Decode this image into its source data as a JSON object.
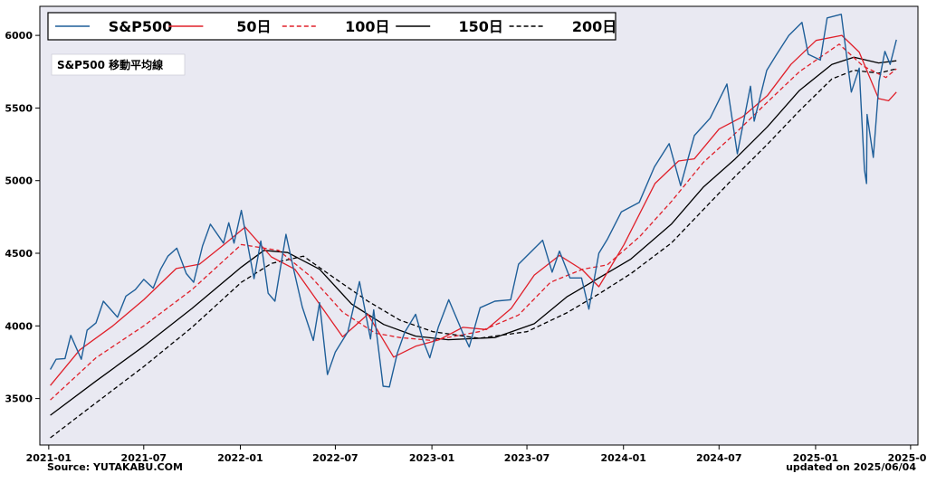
{
  "chart_data": {
    "type": "line",
    "annotation": "S&P500 移動平均線",
    "source_label": "Source: YUTAKABU.COM",
    "updated_label": "updated on 2025/06/04",
    "xlabel": "",
    "ylabel": "",
    "x_range": [
      "2020-12-15",
      "2025-07-15"
    ],
    "ylim": [
      3180,
      6200
    ],
    "grid": false,
    "legend_position": "top",
    "x_ticks": [
      {
        "date": "2021-01-01",
        "label": "2021-01"
      },
      {
        "date": "2021-07-01",
        "label": "2021-07"
      },
      {
        "date": "2022-01-01",
        "label": "2022-01"
      },
      {
        "date": "2022-07-01",
        "label": "2022-07"
      },
      {
        "date": "2023-01-01",
        "label": "2023-01"
      },
      {
        "date": "2023-07-01",
        "label": "2023-07"
      },
      {
        "date": "2024-01-01",
        "label": "2024-01"
      },
      {
        "date": "2024-07-01",
        "label": "2024-07"
      },
      {
        "date": "2025-01-01",
        "label": "2025-01"
      },
      {
        "date": "2025-07-01",
        "label": "2025-07"
      }
    ],
    "y_ticks": [
      3500,
      4000,
      4500,
      5000,
      5500,
      6000
    ],
    "series": [
      {
        "name": "S&P500",
        "color": "#1f5f99",
        "dash": "solid",
        "points": [
          [
            "2021-01-04",
            3700
          ],
          [
            "2021-01-15",
            3770
          ],
          [
            "2021-02-01",
            3775
          ],
          [
            "2021-02-12",
            3935
          ],
          [
            "2021-03-04",
            3770
          ],
          [
            "2021-03-15",
            3970
          ],
          [
            "2021-04-01",
            4020
          ],
          [
            "2021-04-15",
            4170
          ],
          [
            "2021-05-12",
            4060
          ],
          [
            "2021-05-28",
            4205
          ],
          [
            "2021-06-15",
            4250
          ],
          [
            "2021-07-01",
            4320
          ],
          [
            "2021-07-19",
            4260
          ],
          [
            "2021-08-02",
            4390
          ],
          [
            "2021-08-16",
            4480
          ],
          [
            "2021-09-02",
            4535
          ],
          [
            "2021-09-20",
            4360
          ],
          [
            "2021-10-04",
            4300
          ],
          [
            "2021-10-21",
            4550
          ],
          [
            "2021-11-05",
            4700
          ],
          [
            "2021-11-30",
            4570
          ],
          [
            "2021-12-10",
            4710
          ],
          [
            "2021-12-20",
            4570
          ],
          [
            "2022-01-03",
            4795
          ],
          [
            "2022-01-27",
            4325
          ],
          [
            "2022-02-09",
            4585
          ],
          [
            "2022-02-23",
            4225
          ],
          [
            "2022-03-08",
            4170
          ],
          [
            "2022-03-29",
            4630
          ],
          [
            "2022-04-12",
            4400
          ],
          [
            "2022-04-29",
            4130
          ],
          [
            "2022-05-20",
            3900
          ],
          [
            "2022-06-01",
            4160
          ],
          [
            "2022-06-16",
            3665
          ],
          [
            "2022-07-01",
            3820
          ],
          [
            "2022-07-25",
            3960
          ],
          [
            "2022-08-16",
            4305
          ],
          [
            "2022-09-06",
            3910
          ],
          [
            "2022-09-12",
            4110
          ],
          [
            "2022-09-30",
            3585
          ],
          [
            "2022-10-12",
            3580
          ],
          [
            "2022-10-27",
            3810
          ],
          [
            "2022-11-10",
            3955
          ],
          [
            "2022-12-01",
            4080
          ],
          [
            "2022-12-15",
            3900
          ],
          [
            "2022-12-28",
            3780
          ],
          [
            "2023-01-13",
            3990
          ],
          [
            "2023-02-02",
            4180
          ],
          [
            "2023-03-01",
            3950
          ],
          [
            "2023-03-13",
            3855
          ],
          [
            "2023-04-03",
            4125
          ],
          [
            "2023-05-01",
            4170
          ],
          [
            "2023-05-31",
            4180
          ],
          [
            "2023-06-15",
            4425
          ],
          [
            "2023-07-31",
            4590
          ],
          [
            "2023-08-18",
            4370
          ],
          [
            "2023-09-01",
            4515
          ],
          [
            "2023-09-21",
            4330
          ],
          [
            "2023-10-13",
            4330
          ],
          [
            "2023-10-27",
            4115
          ],
          [
            "2023-11-15",
            4500
          ],
          [
            "2023-12-01",
            4595
          ],
          [
            "2023-12-28",
            4785
          ],
          [
            "2024-01-31",
            4850
          ],
          [
            "2024-02-29",
            5095
          ],
          [
            "2024-03-28",
            5255
          ],
          [
            "2024-04-19",
            4965
          ],
          [
            "2024-05-15",
            5310
          ],
          [
            "2024-06-14",
            5430
          ],
          [
            "2024-07-16",
            5665
          ],
          [
            "2024-08-05",
            5185
          ],
          [
            "2024-08-30",
            5650
          ],
          [
            "2024-09-06",
            5410
          ],
          [
            "2024-09-30",
            5760
          ],
          [
            "2024-10-18",
            5865
          ],
          [
            "2024-11-11",
            6000
          ],
          [
            "2024-12-06",
            6090
          ],
          [
            "2024-12-18",
            5870
          ],
          [
            "2025-01-10",
            5830
          ],
          [
            "2025-01-23",
            6120
          ],
          [
            "2025-02-19",
            6145
          ],
          [
            "2025-03-10",
            5610
          ],
          [
            "2025-03-25",
            5775
          ],
          [
            "2025-04-04",
            5075
          ],
          [
            "2025-04-08",
            4980
          ],
          [
            "2025-04-09",
            5455
          ],
          [
            "2025-04-21",
            5160
          ],
          [
            "2025-05-02",
            5685
          ],
          [
            "2025-05-13",
            5890
          ],
          [
            "2025-05-23",
            5800
          ],
          [
            "2025-06-04",
            5970
          ]
        ]
      },
      {
        "name": "50日",
        "color": "#e0202a",
        "dash": "solid",
        "points": [
          [
            "2021-01-04",
            3590
          ],
          [
            "2021-03-01",
            3835
          ],
          [
            "2021-05-03",
            4000
          ],
          [
            "2021-07-01",
            4180
          ],
          [
            "2021-09-01",
            4395
          ],
          [
            "2021-10-15",
            4425
          ],
          [
            "2021-12-01",
            4560
          ],
          [
            "2022-01-10",
            4680
          ],
          [
            "2022-03-01",
            4475
          ],
          [
            "2022-04-15",
            4390
          ],
          [
            "2022-06-01",
            4150
          ],
          [
            "2022-07-15",
            3925
          ],
          [
            "2022-09-01",
            4080
          ],
          [
            "2022-10-20",
            3785
          ],
          [
            "2022-12-01",
            3860
          ],
          [
            "2023-01-15",
            3905
          ],
          [
            "2023-03-01",
            3990
          ],
          [
            "2023-04-15",
            3975
          ],
          [
            "2023-06-01",
            4120
          ],
          [
            "2023-07-15",
            4350
          ],
          [
            "2023-09-01",
            4485
          ],
          [
            "2023-10-15",
            4385
          ],
          [
            "2023-11-15",
            4270
          ],
          [
            "2024-01-02",
            4560
          ],
          [
            "2024-03-01",
            4980
          ],
          [
            "2024-04-15",
            5135
          ],
          [
            "2024-05-15",
            5150
          ],
          [
            "2024-07-01",
            5355
          ],
          [
            "2024-08-15",
            5440
          ],
          [
            "2024-10-01",
            5585
          ],
          [
            "2024-11-15",
            5800
          ],
          [
            "2025-01-02",
            5965
          ],
          [
            "2025-02-20",
            6000
          ],
          [
            "2025-03-25",
            5885
          ],
          [
            "2025-05-01",
            5565
          ],
          [
            "2025-05-20",
            5550
          ],
          [
            "2025-06-04",
            5610
          ]
        ]
      },
      {
        "name": "100日",
        "color": "#e0202a",
        "dash": "dashed",
        "points": [
          [
            "2021-01-04",
            3490
          ],
          [
            "2021-04-01",
            3780
          ],
          [
            "2021-07-01",
            4000
          ],
          [
            "2021-10-01",
            4250
          ],
          [
            "2022-01-03",
            4560
          ],
          [
            "2022-03-15",
            4520
          ],
          [
            "2022-05-15",
            4340
          ],
          [
            "2022-07-15",
            4095
          ],
          [
            "2022-09-15",
            3950
          ],
          [
            "2022-11-01",
            3920
          ],
          [
            "2023-01-01",
            3900
          ],
          [
            "2023-04-01",
            3960
          ],
          [
            "2023-06-15",
            4075
          ],
          [
            "2023-08-15",
            4300
          ],
          [
            "2023-10-15",
            4390
          ],
          [
            "2023-12-01",
            4420
          ],
          [
            "2024-02-01",
            4615
          ],
          [
            "2024-04-01",
            4855
          ],
          [
            "2024-06-01",
            5125
          ],
          [
            "2024-08-01",
            5325
          ],
          [
            "2024-10-01",
            5540
          ],
          [
            "2024-12-01",
            5750
          ],
          [
            "2025-02-15",
            5940
          ],
          [
            "2025-04-01",
            5790
          ],
          [
            "2025-05-15",
            5710
          ],
          [
            "2025-06-04",
            5770
          ]
        ]
      },
      {
        "name": "150日",
        "color": "#000000",
        "dash": "solid",
        "points": [
          [
            "2021-01-04",
            3385
          ],
          [
            "2021-04-01",
            3620
          ],
          [
            "2021-07-01",
            3860
          ],
          [
            "2021-10-01",
            4120
          ],
          [
            "2022-01-03",
            4405
          ],
          [
            "2022-02-15",
            4520
          ],
          [
            "2022-04-01",
            4505
          ],
          [
            "2022-06-01",
            4390
          ],
          [
            "2022-08-01",
            4150
          ],
          [
            "2022-10-01",
            4010
          ],
          [
            "2022-12-01",
            3930
          ],
          [
            "2023-02-01",
            3905
          ],
          [
            "2023-05-01",
            3920
          ],
          [
            "2023-07-15",
            4015
          ],
          [
            "2023-09-15",
            4200
          ],
          [
            "2023-11-15",
            4330
          ],
          [
            "2024-01-15",
            4460
          ],
          [
            "2024-04-01",
            4700
          ],
          [
            "2024-06-01",
            4955
          ],
          [
            "2024-08-01",
            5150
          ],
          [
            "2024-10-01",
            5370
          ],
          [
            "2024-12-01",
            5620
          ],
          [
            "2025-02-01",
            5800
          ],
          [
            "2025-03-15",
            5850
          ],
          [
            "2025-05-01",
            5810
          ],
          [
            "2025-06-04",
            5825
          ]
        ]
      },
      {
        "name": "200日",
        "color": "#000000",
        "dash": "dashed",
        "points": [
          [
            "2021-01-04",
            3230
          ],
          [
            "2021-04-01",
            3470
          ],
          [
            "2021-07-01",
            3720
          ],
          [
            "2021-10-01",
            3990
          ],
          [
            "2022-01-03",
            4300
          ],
          [
            "2022-03-01",
            4430
          ],
          [
            "2022-05-01",
            4480
          ],
          [
            "2022-07-01",
            4325
          ],
          [
            "2022-09-01",
            4170
          ],
          [
            "2022-11-01",
            4040
          ],
          [
            "2023-01-03",
            3960
          ],
          [
            "2023-04-01",
            3915
          ],
          [
            "2023-07-01",
            3960
          ],
          [
            "2023-09-15",
            4090
          ],
          [
            "2023-11-15",
            4220
          ],
          [
            "2024-01-15",
            4360
          ],
          [
            "2024-04-01",
            4570
          ],
          [
            "2024-06-01",
            4800
          ],
          [
            "2024-08-01",
            5030
          ],
          [
            "2024-10-01",
            5250
          ],
          [
            "2024-12-01",
            5480
          ],
          [
            "2025-02-01",
            5700
          ],
          [
            "2025-03-15",
            5760
          ],
          [
            "2025-05-01",
            5740
          ],
          [
            "2025-06-04",
            5770
          ]
        ]
      }
    ]
  }
}
